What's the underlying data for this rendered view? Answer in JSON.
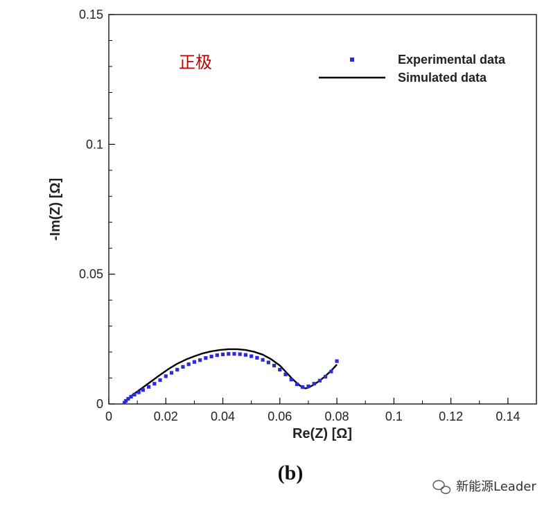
{
  "chart_data": {
    "type": "scatter",
    "xlabel": "Re(Z) [Ω]",
    "ylabel": "-Im(Z) [Ω]",
    "xlim": [
      0,
      0.15
    ],
    "ylim": [
      0,
      0.15
    ],
    "x_ticks": [
      "0",
      "0.02",
      "0.04",
      "0.06",
      "0.08",
      "0.1",
      "0.12",
      "0.14"
    ],
    "y_ticks": [
      "0",
      "0.05",
      "0.1",
      "0.15"
    ],
    "grid": false,
    "legend_placement": "top-right",
    "series": [
      {
        "name": "Experimental data",
        "style": "markers",
        "color": "#2b2bdc",
        "x": [
          0.0055,
          0.006,
          0.0068,
          0.0078,
          0.009,
          0.0105,
          0.012,
          0.014,
          0.016,
          0.018,
          0.02,
          0.022,
          0.024,
          0.026,
          0.028,
          0.03,
          0.032,
          0.034,
          0.036,
          0.038,
          0.04,
          0.042,
          0.044,
          0.046,
          0.048,
          0.05,
          0.052,
          0.054,
          0.056,
          0.058,
          0.06,
          0.062,
          0.064,
          0.066,
          0.068,
          0.07,
          0.072,
          0.074,
          0.076,
          0.078,
          0.08
        ],
        "y": [
          0.0005,
          0.0012,
          0.002,
          0.0028,
          0.0036,
          0.0045,
          0.0054,
          0.0066,
          0.0078,
          0.0092,
          0.0107,
          0.012,
          0.0132,
          0.0143,
          0.0153,
          0.0162,
          0.0169,
          0.0177,
          0.0183,
          0.0188,
          0.0191,
          0.0193,
          0.0193,
          0.0192,
          0.0189,
          0.0184,
          0.0178,
          0.017,
          0.016,
          0.0148,
          0.0132,
          0.0114,
          0.0094,
          0.0076,
          0.0065,
          0.0068,
          0.0078,
          0.009,
          0.0105,
          0.0125,
          0.0165
        ]
      },
      {
        "name": "Simulated data",
        "style": "line",
        "color": "#000000",
        "x": [
          0.0055,
          0.0065,
          0.008,
          0.01,
          0.012,
          0.015,
          0.018,
          0.021,
          0.024,
          0.027,
          0.03,
          0.033,
          0.036,
          0.039,
          0.042,
          0.045,
          0.048,
          0.051,
          0.054,
          0.057,
          0.06,
          0.062,
          0.064,
          0.066,
          0.068,
          0.069,
          0.07,
          0.072,
          0.074,
          0.076,
          0.078,
          0.08
        ],
        "y": [
          0.0005,
          0.0018,
          0.0032,
          0.0048,
          0.0064,
          0.0088,
          0.0112,
          0.0135,
          0.0155,
          0.0171,
          0.0184,
          0.0195,
          0.0203,
          0.0208,
          0.0211,
          0.0211,
          0.0208,
          0.0201,
          0.019,
          0.0172,
          0.0148,
          0.0125,
          0.0101,
          0.008,
          0.0063,
          0.006,
          0.0063,
          0.0075,
          0.009,
          0.0108,
          0.0128,
          0.0152
        ]
      }
    ],
    "annotation": "正极",
    "panel_label": "(b)"
  },
  "watermark": {
    "icon": "wechat-icon",
    "text": "新能源Leader"
  }
}
